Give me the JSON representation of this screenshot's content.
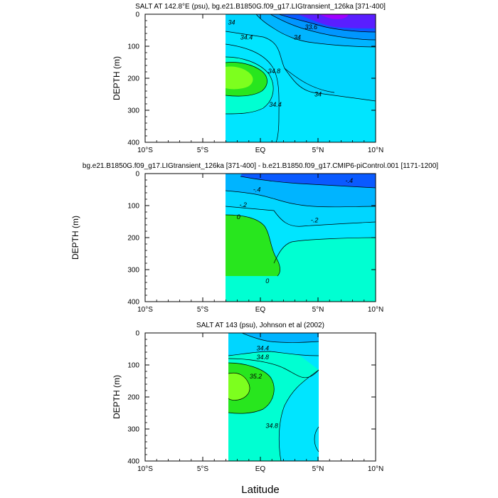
{
  "figure": {
    "xlabel": "Latitude"
  },
  "colors": {
    "levels": [
      "#00e5ff",
      "#1aeef0",
      "#00d6ff",
      "#00b4ff",
      "#0096ff",
      "#0a5aff",
      "#5a1eff",
      "#a000ff"
    ],
    "green_light": "#7dff1e",
    "green_mid": "#28e61e",
    "green_dark": "#14c814",
    "aqua": "#00ffd2",
    "cyan_soft": "#2ef2ff",
    "line": "#000000"
  },
  "chart_data": [
    {
      "type": "contour",
      "title": "SALT AT 142.8°E (psu), bg.e21.B1850G.f09_g17.LIGtransient_126ka [371-400]",
      "xlabel": "",
      "ylabel": "DEPTH (m)",
      "xlim": [
        -10,
        10
      ],
      "ylim": [
        400,
        0
      ],
      "x_ticks": [
        -10,
        -5,
        0,
        5,
        10
      ],
      "x_tick_labels": [
        "10°S",
        "5°S",
        "EQ",
        "5°N",
        "10°N"
      ],
      "y_ticks": [
        0,
        100,
        200,
        300,
        400
      ],
      "y_tick_labels": [
        "0",
        "100",
        "200",
        "300",
        "400"
      ],
      "data_extent_lat": [
        -3,
        10
      ],
      "contour_labels": [
        {
          "text": "34",
          "lat": -2.5,
          "depth": 25
        },
        {
          "text": "33.6",
          "lat": 4.4,
          "depth": 40
        },
        {
          "text": "34.4",
          "lat": -1.2,
          "depth": 72
        },
        {
          "text": "34",
          "lat": 3.2,
          "depth": 72
        },
        {
          "text": "34.8",
          "lat": 1.2,
          "depth": 178
        },
        {
          "text": "34",
          "lat": 5.0,
          "depth": 250
        },
        {
          "text": "34.4",
          "lat": 1.3,
          "depth": 282
        }
      ]
    },
    {
      "type": "contour",
      "title": "bg.e21.B1850G.f09_g17.LIGtransient_126ka [371-400] - b.e21.B1850.f09_g17.CMIP6-piControl.001 [1171-1200]",
      "xlabel": "",
      "ylabel": "DEPTH (m)",
      "xlim": [
        -10,
        10
      ],
      "ylim": [
        400,
        0
      ],
      "x_ticks": [
        -10,
        -5,
        0,
        5,
        10
      ],
      "x_tick_labels": [
        "10°S",
        "5°S",
        "EQ",
        "5°N",
        "10°N"
      ],
      "y_ticks": [
        0,
        100,
        200,
        300,
        400
      ],
      "y_tick_labels": [
        "0",
        "100",
        "200",
        "300",
        "400"
      ],
      "data_extent_lat": [
        -3,
        10
      ],
      "contour_labels": [
        {
          "text": "-.4",
          "lat": 7.7,
          "depth": 22
        },
        {
          "text": "-.4",
          "lat": -0.3,
          "depth": 50
        },
        {
          "text": "-.2",
          "lat": -1.5,
          "depth": 98
        },
        {
          "text": "-.2",
          "lat": 4.7,
          "depth": 145
        },
        {
          "text": "0",
          "lat": -1.9,
          "depth": 135
        },
        {
          "text": "0",
          "lat": 0.6,
          "depth": 335
        }
      ]
    },
    {
      "type": "contour",
      "title": "SALT AT 143 (psu), Johnson et al (2002)",
      "xlabel": "Latitude",
      "ylabel": "DEPTH (m)",
      "xlim": [
        -10,
        10
      ],
      "ylim": [
        400,
        0
      ],
      "x_ticks": [
        -10,
        -5,
        0,
        5,
        10
      ],
      "x_tick_labels": [
        "10°S",
        "5°S",
        "EQ",
        "5°N",
        "10°N"
      ],
      "y_ticks": [
        0,
        100,
        200,
        300,
        400
      ],
      "y_tick_labels": [
        "0",
        "100",
        "200",
        "300",
        "400"
      ],
      "data_extent_lat": [
        -2.8,
        5
      ],
      "contour_labels": [
        {
          "text": "34.4",
          "lat": 0.2,
          "depth": 48
        },
        {
          "text": "34.8",
          "lat": 0.2,
          "depth": 75
        },
        {
          "text": "35.2",
          "lat": -0.4,
          "depth": 135
        },
        {
          "text": "34.8",
          "lat": 1.0,
          "depth": 290
        }
      ]
    }
  ]
}
